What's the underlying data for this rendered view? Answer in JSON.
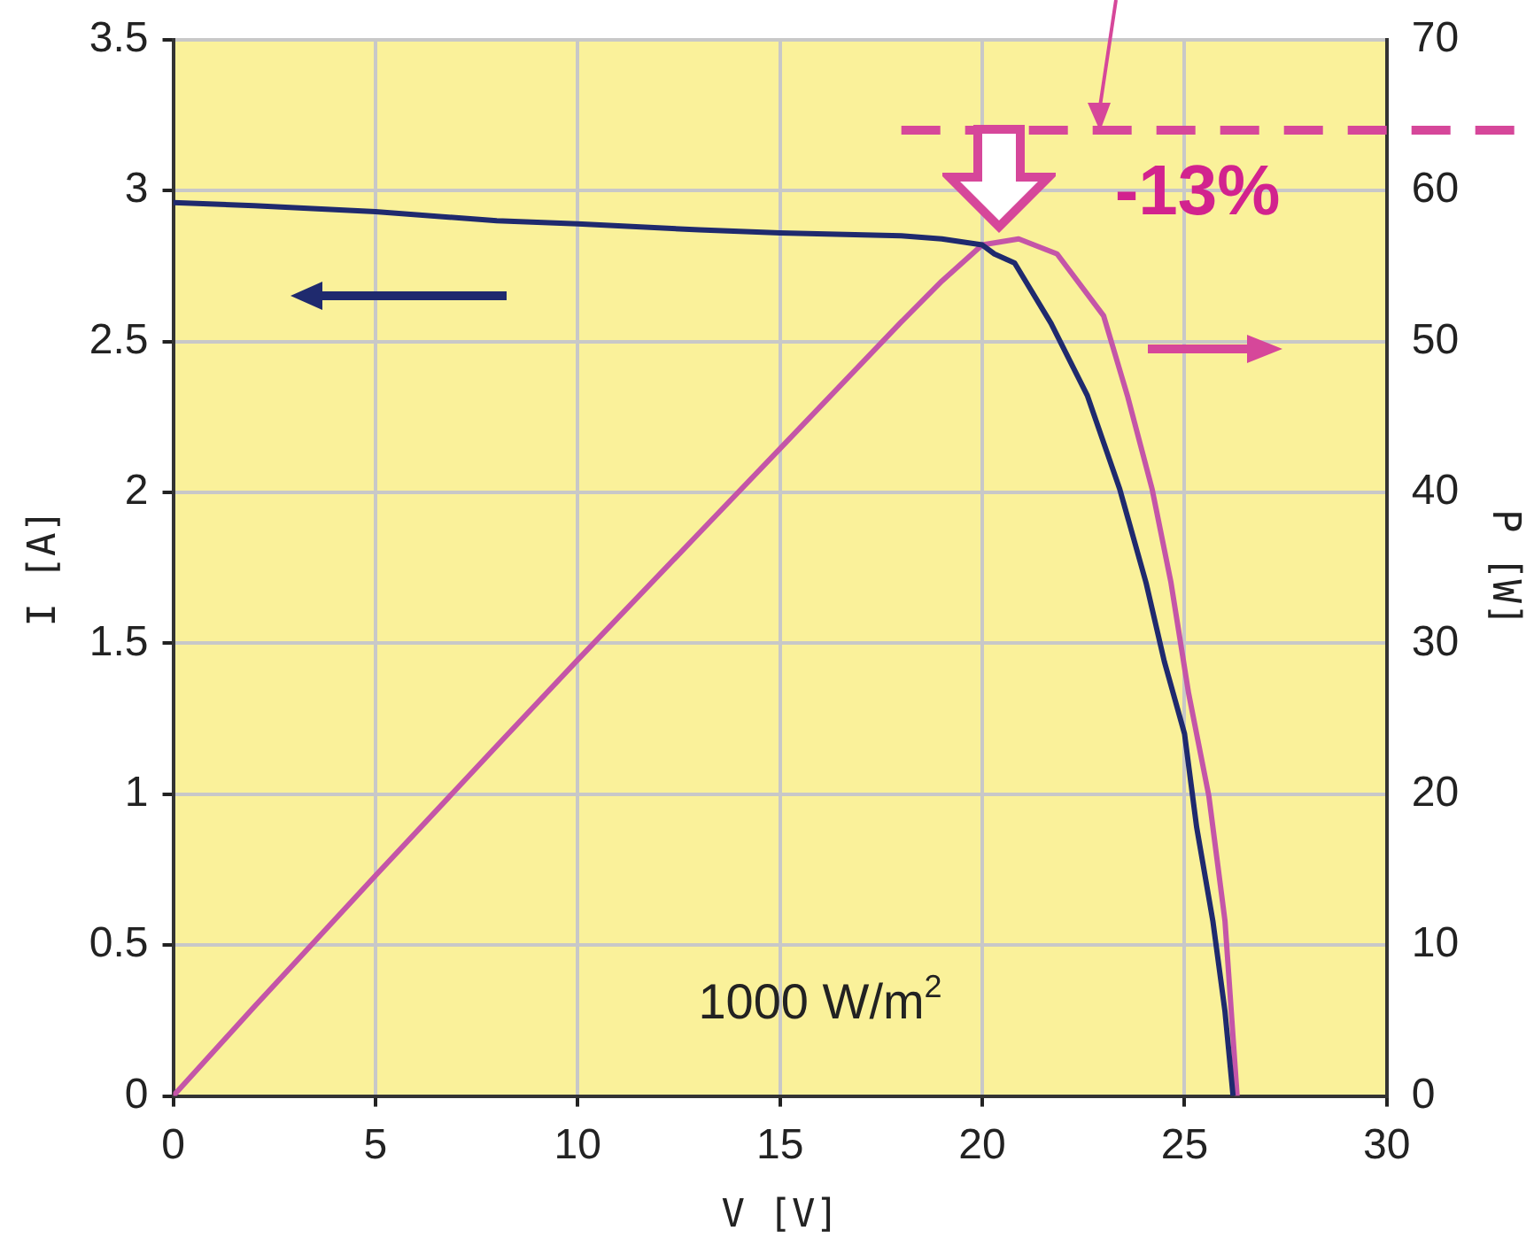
{
  "chart_data": {
    "type": "line",
    "xlabel": "V [V]",
    "ylabel": "I [A]",
    "y2label": "P [W]",
    "xlim": [
      0,
      30
    ],
    "xticks": [
      0,
      5,
      10,
      15,
      20,
      25,
      30
    ],
    "ylim": [
      0,
      3.5
    ],
    "yticks": [
      0,
      0.5,
      1,
      1.5,
      2,
      2.5,
      3,
      3.5
    ],
    "y2lim": [
      0,
      70
    ],
    "y2ticks": [
      0,
      10,
      20,
      30,
      40,
      50,
      60,
      70
    ],
    "grid": true,
    "legend": false,
    "marker": "none",
    "line_style": "solid",
    "series": [
      {
        "color": "#1f2a6e",
        "axis": "y",
        "x": [
          0,
          2,
          5,
          8,
          10,
          13,
          15,
          18,
          19,
          20,
          20.3,
          20.8,
          21.7,
          22.6,
          23.4,
          24.05,
          24.5,
          25,
          25.3,
          25.7,
          26,
          26.2
        ],
        "values": [
          2.96,
          2.95,
          2.93,
          2.9,
          2.89,
          2.87,
          2.86,
          2.85,
          2.84,
          2.82,
          2.79,
          2.76,
          2.56,
          2.32,
          2.01,
          1.7,
          1.44,
          1.2,
          0.89,
          0.58,
          0.28,
          0
        ]
      },
      {
        "color": "#c455a8",
        "axis": "y2",
        "x": [
          0,
          2,
          5,
          8,
          10,
          13,
          15,
          18,
          19,
          20,
          20.9,
          21.85,
          23,
          23.6,
          24.2,
          24.66,
          25.1,
          25.6,
          26,
          26.3
        ],
        "values": [
          0,
          5.9,
          14.6,
          23.2,
          28.9,
          37.3,
          42.9,
          51.3,
          54,
          56.4,
          56.8,
          55.8,
          51.7,
          46.3,
          40.2,
          34.1,
          26.7,
          19.9,
          11.6,
          0
        ]
      }
    ],
    "ref_lines": [
      {
        "axis": "y2",
        "value": 64,
        "color": "#d6479a",
        "line_style": "dashed"
      }
    ],
    "annotations": [
      "-13%",
      "1000 W/m$^{2}$"
    ]
  }
}
